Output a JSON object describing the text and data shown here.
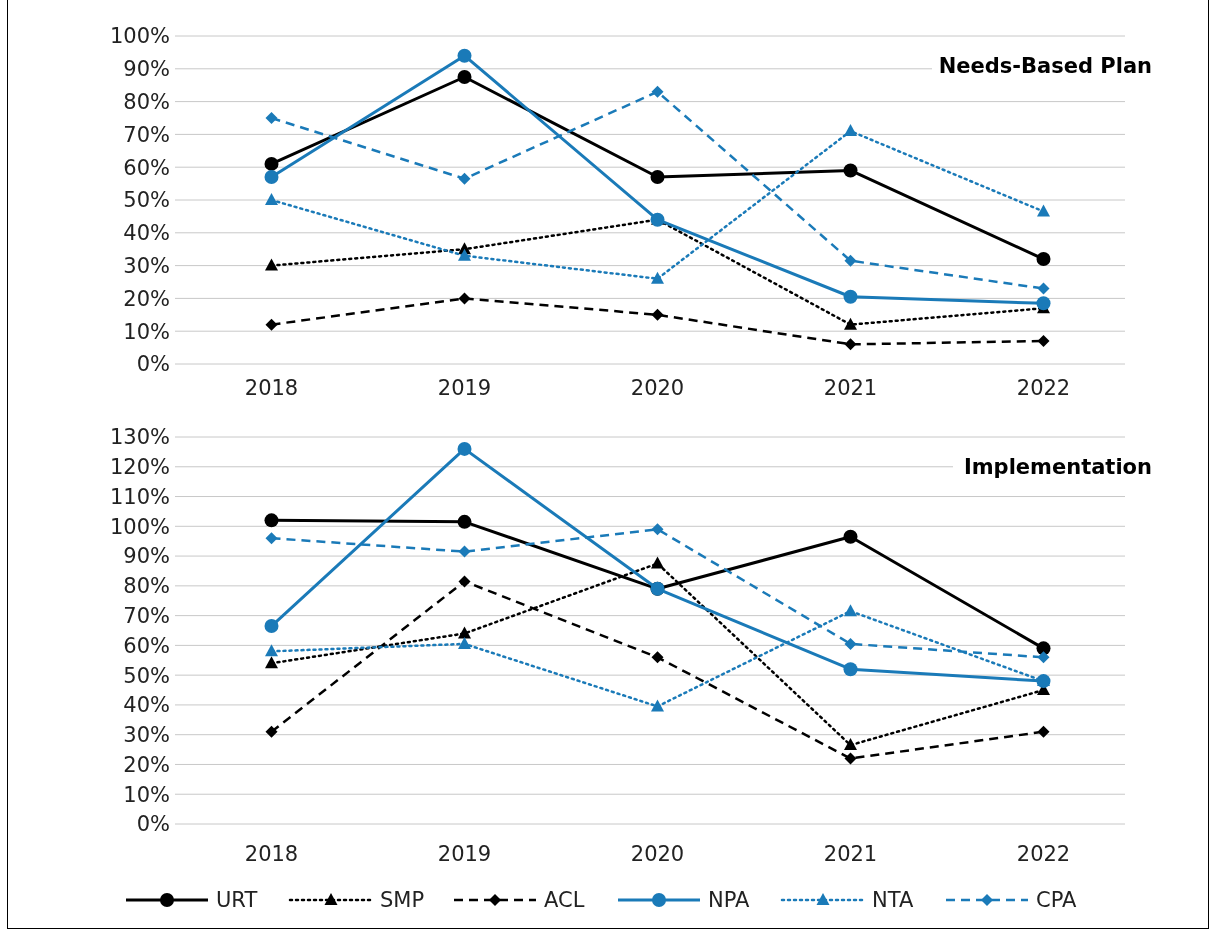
{
  "chart_data": [
    {
      "type": "line",
      "title": "Needs-Based Plan",
      "categories": [
        "2018",
        "2019",
        "2020",
        "2021",
        "2022"
      ],
      "ylim": [
        0,
        100
      ],
      "yticks": [
        {
          "value": 0,
          "label": "0%"
        },
        {
          "value": 10,
          "label": "10%"
        },
        {
          "value": 20,
          "label": "20%"
        },
        {
          "value": 30,
          "label": "30%"
        },
        {
          "value": 40,
          "label": "40%"
        },
        {
          "value": 50,
          "label": "50%"
        },
        {
          "value": 60,
          "label": "60%"
        },
        {
          "value": 70,
          "label": "70%"
        },
        {
          "value": 80,
          "label": "80%"
        },
        {
          "value": 90,
          "label": "90%"
        },
        {
          "value": 100,
          "label": "100%"
        }
      ],
      "grid": "y",
      "legend": false,
      "series": [
        {
          "color": "#000000",
          "marker": "circle",
          "line_style": "solid",
          "values": [
            61,
            87.5,
            57,
            59,
            32
          ]
        },
        {
          "color": "#000000",
          "marker": "triangle",
          "line_style": "dotted",
          "values": [
            30,
            35,
            44,
            12,
            17
          ]
        },
        {
          "color": "#000000",
          "marker": "diamond",
          "line_style": "dashed",
          "values": [
            12,
            20,
            15,
            6,
            7
          ]
        },
        {
          "color": "#1a7ab8",
          "marker": "circle",
          "line_style": "solid",
          "values": [
            57,
            94,
            44,
            20.5,
            18.5
          ]
        },
        {
          "color": "#1a7ab8",
          "marker": "triangle",
          "line_style": "dotted",
          "values": [
            50,
            33,
            26,
            71,
            46.5
          ]
        },
        {
          "color": "#1a7ab8",
          "marker": "diamond",
          "line_style": "dashed",
          "values": [
            75,
            56.5,
            83,
            31.5,
            23
          ]
        }
      ]
    },
    {
      "type": "line",
      "title": "Implementation",
      "categories": [
        "2018",
        "2019",
        "2020",
        "2021",
        "2022"
      ],
      "ylim": [
        0,
        130
      ],
      "yticks": [
        {
          "value": 0,
          "label": "0%"
        },
        {
          "value": 10,
          "label": "10%"
        },
        {
          "value": 20,
          "label": "20%"
        },
        {
          "value": 30,
          "label": "30%"
        },
        {
          "value": 40,
          "label": "40%"
        },
        {
          "value": 50,
          "label": "50%"
        },
        {
          "value": 60,
          "label": "60%"
        },
        {
          "value": 70,
          "label": "70%"
        },
        {
          "value": 80,
          "label": "80%"
        },
        {
          "value": 90,
          "label": "90%"
        },
        {
          "value": 100,
          "label": "100%"
        },
        {
          "value": 110,
          "label": "110%"
        },
        {
          "value": 120,
          "label": "120%"
        },
        {
          "value": 130,
          "label": "130%"
        }
      ],
      "grid": "y",
      "legend": "bottom",
      "series": [
        {
          "name": "URT",
          "color": "#000000",
          "marker": "circle",
          "line_style": "solid",
          "values": [
            102,
            101.5,
            79,
            96.5,
            59
          ]
        },
        {
          "name": "SMP",
          "color": "#000000",
          "marker": "triangle",
          "line_style": "dotted",
          "values": [
            54,
            64,
            87.5,
            26.5,
            45
          ]
        },
        {
          "name": "ACL",
          "color": "#000000",
          "marker": "diamond",
          "line_style": "dashed",
          "values": [
            31,
            81.5,
            56,
            22,
            31
          ]
        },
        {
          "name": "NPA",
          "color": "#1a7ab8",
          "marker": "circle",
          "line_style": "solid",
          "values": [
            66.5,
            126,
            79,
            52,
            48
          ]
        },
        {
          "name": "NTA",
          "color": "#1a7ab8",
          "marker": "triangle",
          "line_style": "dotted",
          "values": [
            58,
            60.5,
            39.5,
            71.5,
            48
          ]
        },
        {
          "name": "CPA",
          "color": "#1a7ab8",
          "marker": "diamond",
          "line_style": "dashed",
          "values": [
            96,
            91.5,
            99,
            60.5,
            56
          ]
        }
      ]
    }
  ]
}
